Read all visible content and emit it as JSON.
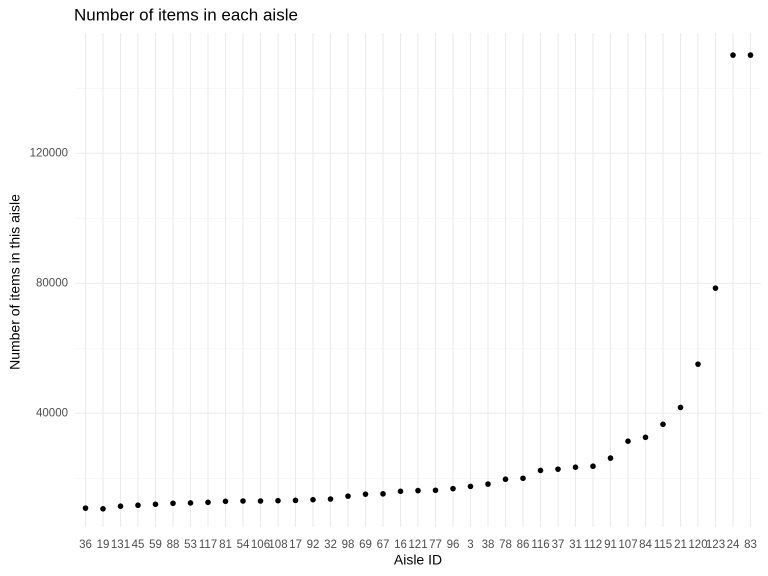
{
  "chart_data": {
    "type": "scatter",
    "title": "Number of items in each aisle",
    "x_label": "Aisle ID",
    "y_label": "Number of items in this aisle",
    "categories": [
      "36",
      "19",
      "131",
      "45",
      "59",
      "88",
      "53",
      "117",
      "81",
      "54",
      "106",
      "108",
      "17",
      "92",
      "32",
      "98",
      "69",
      "67",
      "16",
      "121",
      "77",
      "96",
      "3",
      "38",
      "78",
      "86",
      "116",
      "37",
      "31",
      "112",
      "91",
      "107",
      "84",
      "115",
      "21",
      "120",
      "123",
      "24",
      "83"
    ],
    "values": [
      10800,
      10600,
      11400,
      11700,
      12000,
      12300,
      12400,
      12600,
      12900,
      13000,
      13000,
      13100,
      13200,
      13400,
      13600,
      14500,
      15100,
      15200,
      16000,
      16200,
      16300,
      16800,
      17500,
      18200,
      19700,
      20000,
      22400,
      22800,
      23400,
      23700,
      26200,
      31400,
      32600,
      36600,
      41800,
      55100,
      78500,
      150200,
      150200
    ],
    "color": "#000000",
    "ylim": [
      5000,
      157000
    ],
    "yticks": [
      40000,
      80000,
      120000
    ],
    "minor_yticks": [
      20000,
      60000,
      100000,
      140000
    ],
    "grid": true
  }
}
